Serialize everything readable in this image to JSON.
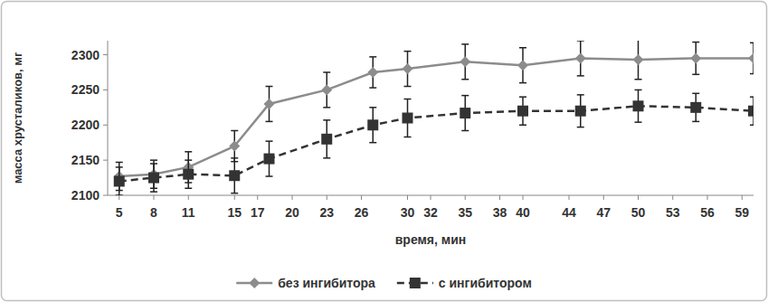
{
  "chart_data": {
    "type": "line",
    "x_label": "время, мин",
    "y_label": "масса хрусталиков, мг",
    "x": [
      5,
      8,
      11,
      15,
      18,
      23,
      27,
      30,
      35,
      40,
      45,
      50,
      55,
      60
    ],
    "series": [
      {
        "name": "без ингибитора",
        "color": "#8c8c8c",
        "marker": "diamond",
        "line_style": "solid",
        "values": [
          2127,
          2130,
          2140,
          2170,
          2230,
          2250,
          2275,
          2280,
          2290,
          2285,
          2295,
          2293,
          2295,
          2295
        ],
        "errors": [
          20,
          20,
          22,
          22,
          25,
          25,
          22,
          25,
          25,
          25,
          25,
          28,
          23,
          22
        ]
      },
      {
        "name": "с ингибитором",
        "color": "#333333",
        "marker": "square",
        "line_style": "dashed",
        "values": [
          2120,
          2125,
          2130,
          2128,
          2152,
          2180,
          2200,
          2210,
          2217,
          2220,
          2220,
          2227,
          2225,
          2220
        ],
        "errors": [
          20,
          20,
          20,
          25,
          25,
          27,
          25,
          27,
          25,
          20,
          23,
          23,
          20,
          20
        ]
      }
    ],
    "xlim": [
      4,
      60
    ],
    "xticks": [
      5,
      8,
      11,
      15,
      17,
      20,
      23,
      26,
      30,
      32,
      35,
      38,
      40,
      44,
      47,
      50,
      53,
      56,
      59
    ],
    "ylim": [
      2100,
      2320
    ],
    "yticks": [
      2100,
      2150,
      2200,
      2250,
      2300
    ],
    "grid": false,
    "legend": "bottom"
  }
}
